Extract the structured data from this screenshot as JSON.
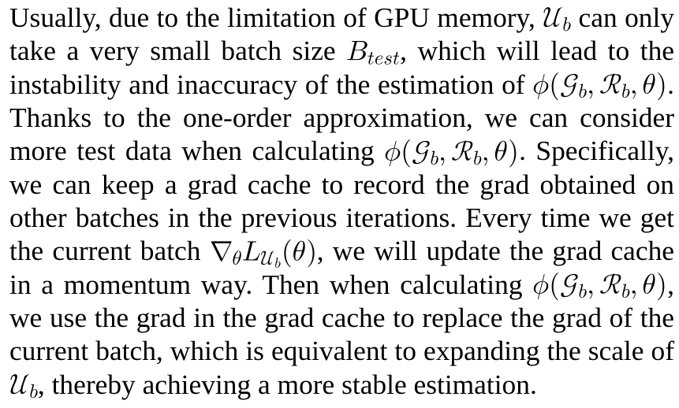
{
  "page": {
    "kind": "paper-paragraph",
    "background_color": "#ffffff",
    "text_color": "#000000"
  },
  "paragraph": {
    "lines": [
      {
        "segments": [
          {
            "t": "text",
            "v": "Usually, due to the limitation of GPU memory, "
          },
          {
            "t": "math",
            "sym": "Ub",
            "v": "𝒰_b"
          },
          {
            "t": "text",
            "v": " can only"
          }
        ]
      },
      {
        "segments": [
          {
            "t": "text",
            "v": "take a very small batch size "
          },
          {
            "t": "math",
            "sym": "Btest",
            "v": "B_test"
          },
          {
            "t": "text",
            "v": ", which will lead to the"
          }
        ]
      },
      {
        "segments": [
          {
            "t": "text",
            "v": "instability and inaccuracy of the estimation of "
          },
          {
            "t": "math",
            "sym": "phiGRtheta",
            "v": "ϕ(𝒢_b, ℛ_b, θ)"
          },
          {
            "t": "text",
            "v": "."
          }
        ]
      },
      {
        "segments": [
          {
            "t": "text",
            "v": "Thanks to the one-order approximation, we can consider"
          }
        ]
      },
      {
        "segments": [
          {
            "t": "text",
            "v": "more test data when calculating "
          },
          {
            "t": "math",
            "sym": "phiGRtheta",
            "v": "ϕ(𝒢_b, ℛ_b, θ)"
          },
          {
            "t": "text",
            "v": ". Specifically,"
          }
        ]
      },
      {
        "segments": [
          {
            "t": "text",
            "v": "we can keep a grad cache to record the grad obtained on"
          }
        ]
      },
      {
        "segments": [
          {
            "t": "text",
            "v": "other batches in the previous iterations. Every time we get"
          }
        ]
      },
      {
        "segments": [
          {
            "t": "text",
            "v": "the current batch "
          },
          {
            "t": "math",
            "sym": "nablaLUbtheta",
            "v": "∇_θ L_{𝒰_b}(θ)"
          },
          {
            "t": "text",
            "v": ", we will update the grad cache"
          }
        ]
      },
      {
        "segments": [
          {
            "t": "text",
            "v": "in a momentum way. Then when calculating "
          },
          {
            "t": "math",
            "sym": "phiGRtheta",
            "v": "ϕ(𝒢_b, ℛ_b, θ)"
          },
          {
            "t": "text",
            "v": ","
          }
        ]
      },
      {
        "segments": [
          {
            "t": "text",
            "v": "we use the grad in the grad cache to replace the grad of the"
          }
        ]
      },
      {
        "segments": [
          {
            "t": "text",
            "v": "current batch, which is equivalent to expanding the scale of"
          }
        ]
      },
      {
        "segments": [
          {
            "t": "math",
            "sym": "Ub",
            "v": "𝒰_b"
          },
          {
            "t": "text",
            "v": ", thereby achieving a more stable estimation."
          }
        ]
      }
    ]
  }
}
